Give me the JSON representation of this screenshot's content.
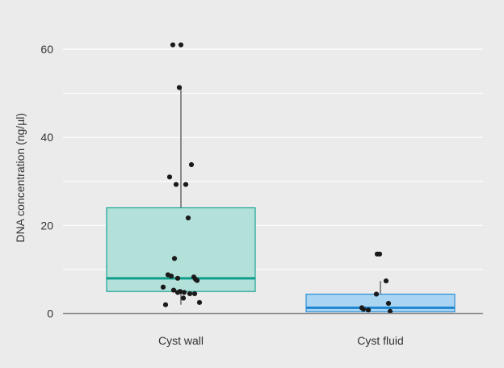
{
  "chart_data": {
    "type": "box",
    "title": "",
    "xlabel": "",
    "ylabel": "DNA concentration (ng/µl)",
    "ylim": [
      -2.5,
      66
    ],
    "yticks": [
      0,
      20,
      40,
      60
    ],
    "grid": true,
    "categories": [
      "Cyst wall",
      "Cyst fluid"
    ],
    "boxes": [
      {
        "category": "Cyst wall",
        "q1": 5.0,
        "median": 8.0,
        "q3": 24.0,
        "whisker_low": 2.0,
        "whisker_high": 51.3,
        "fill": "#b3e0d9",
        "edge": "#1aa394",
        "median_color": "#109c8a",
        "points": [
          61,
          61,
          51.3,
          33.8,
          31,
          29.3,
          29.3,
          21.7,
          12.5,
          8.8,
          8.5,
          8.3,
          8.0,
          7.8,
          7.5,
          6.0,
          5.3,
          5.0,
          4.8,
          4.8,
          4.5,
          4.5,
          3.5,
          2.5,
          2.0
        ]
      },
      {
        "category": "Cyst fluid",
        "q1": 0.4,
        "median": 1.3,
        "q3": 4.4,
        "whisker_low": 0.4,
        "whisker_high": 7.4,
        "fill": "#a9d4f2",
        "edge": "#2e8fd6",
        "median_color": "#1c84d0",
        "points": [
          13.5,
          13.5,
          7.4,
          4.4,
          2.3,
          1.3,
          1.0,
          0.8,
          0.5
        ]
      }
    ],
    "point_color": "#1a1a1a",
    "background": "#ebebeb",
    "gridline_color": "#ffffff"
  }
}
